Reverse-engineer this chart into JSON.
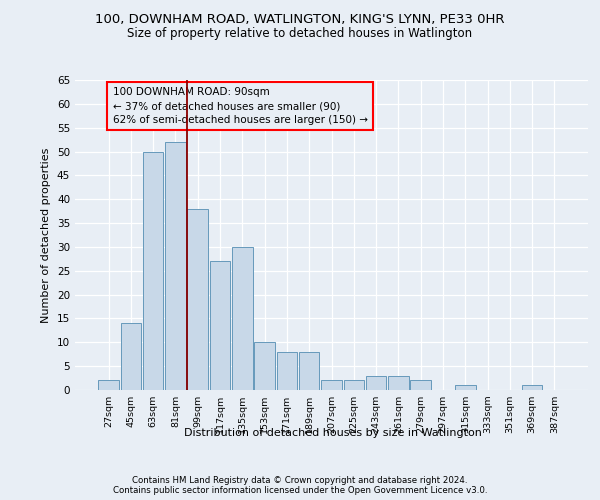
{
  "title1": "100, DOWNHAM ROAD, WATLINGTON, KING'S LYNN, PE33 0HR",
  "title2": "Size of property relative to detached houses in Watlington",
  "xlabel": "Distribution of detached houses by size in Watlington",
  "ylabel": "Number of detached properties",
  "bar_labels": [
    "27sqm",
    "45sqm",
    "63sqm",
    "81sqm",
    "99sqm",
    "117sqm",
    "135sqm",
    "153sqm",
    "171sqm",
    "189sqm",
    "207sqm",
    "225sqm",
    "243sqm",
    "261sqm",
    "279sqm",
    "297sqm",
    "315sqm",
    "333sqm",
    "351sqm",
    "369sqm",
    "387sqm"
  ],
  "bar_values": [
    2,
    14,
    50,
    52,
    38,
    27,
    30,
    10,
    8,
    8,
    2,
    2,
    3,
    3,
    2,
    0,
    1,
    0,
    0,
    1,
    0
  ],
  "bar_color": "#c8d8e8",
  "bar_edge_color": "#6699bb",
  "annotation_line": "100 DOWNHAM ROAD: 90sqm",
  "annotation_line2": "← 37% of detached houses are smaller (90)",
  "annotation_line3": "62% of semi-detached houses are larger (150) →",
  "ylim": [
    0,
    65
  ],
  "background_color": "#e8eef5",
  "grid_color": "#ffffff",
  "footer1": "Contains HM Land Registry data © Crown copyright and database right 2024.",
  "footer2": "Contains public sector information licensed under the Open Government Licence v3.0."
}
